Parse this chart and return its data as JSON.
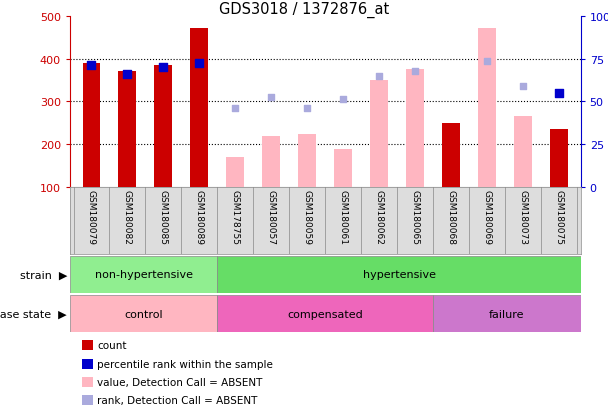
{
  "title": "GDS3018 / 1372876_at",
  "samples": [
    "GSM180079",
    "GSM180082",
    "GSM180085",
    "GSM180089",
    "GSM178755",
    "GSM180057",
    "GSM180059",
    "GSM180061",
    "GSM180062",
    "GSM180065",
    "GSM180068",
    "GSM180069",
    "GSM180073",
    "GSM180075"
  ],
  "count_present": [
    390,
    370,
    385,
    470,
    null,
    null,
    null,
    null,
    null,
    null,
    250,
    null,
    null,
    235
  ],
  "count_absent": [
    null,
    null,
    null,
    null,
    170,
    220,
    225,
    190,
    350,
    375,
    null,
    470,
    265,
    null
  ],
  "rank_present": [
    385,
    365,
    380,
    390,
    null,
    null,
    null,
    null,
    null,
    null,
    null,
    null,
    null,
    320
  ],
  "rank_absent": [
    null,
    null,
    null,
    null,
    285,
    310,
    285,
    305,
    360,
    370,
    null,
    395,
    335,
    null
  ],
  "ylim_left": [
    100,
    500
  ],
  "ylim_right": [
    0,
    100
  ],
  "yticks_left": [
    100,
    200,
    300,
    400,
    500
  ],
  "yticks_right": [
    0,
    25,
    50,
    75,
    100
  ],
  "bar_width": 0.5,
  "count_present_color": "#CC0000",
  "count_absent_color": "#FFB6C1",
  "rank_present_color": "#0000CC",
  "rank_absent_color": "#AAAADD",
  "background_color": "#FFFFFF",
  "xlabel_color": "#CC0000",
  "right_axis_color": "#0000CC",
  "strain_groups": [
    {
      "label": "non-hypertensive",
      "start": 0,
      "end": 4,
      "color": "#90EE90"
    },
    {
      "label": "hypertensive",
      "start": 4,
      "end": 14,
      "color": "#66CC66"
    }
  ],
  "disease_control_color": "#FFB6C1",
  "disease_compensated_color": "#EE66BB",
  "disease_failure_color": "#CC77CC",
  "legend_items": [
    {
      "label": "count",
      "color": "#CC0000"
    },
    {
      "label": "percentile rank within the sample",
      "color": "#0000CC"
    },
    {
      "label": "value, Detection Call = ABSENT",
      "color": "#FFB6C1"
    },
    {
      "label": "rank, Detection Call = ABSENT",
      "color": "#AAAADD"
    }
  ]
}
